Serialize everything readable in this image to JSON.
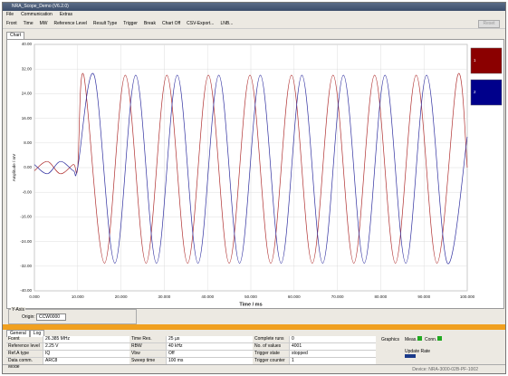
{
  "window": {
    "title": "NRA_Scope_Demo (V6.2.0)"
  },
  "menu": [
    "File",
    "Communication",
    "Extras"
  ],
  "toolbar": [
    "Front",
    "Time",
    "MW",
    "Reference Level",
    "Result Type",
    "Trigger",
    "Break",
    "Chart Off",
    "CSV-Export...",
    "LNB..."
  ],
  "side_button": "Reset",
  "tabs": [
    "Chart"
  ],
  "chart_data": {
    "type": "line",
    "xlabel": "Time / ms",
    "ylabel": "Amplitude / mV",
    "xlim": [
      0,
      100
    ],
    "ylim": [
      -40,
      40
    ],
    "xticks": [
      {
        "value": 0,
        "label": "0.000"
      },
      {
        "value": 10,
        "label": "10.000"
      },
      {
        "value": 20,
        "label": "20.000"
      },
      {
        "value": 30,
        "label": "30.000"
      },
      {
        "value": 40,
        "label": "40.000"
      },
      {
        "value": 50,
        "label": "50.000"
      },
      {
        "value": 60,
        "label": "60.000"
      },
      {
        "value": 70,
        "label": "70.000"
      },
      {
        "value": 80,
        "label": "80.000"
      },
      {
        "value": 90,
        "label": "90.000"
      },
      {
        "value": 100,
        "label": "100.000"
      }
    ],
    "yticks": [
      {
        "value": 40,
        "label": "40.00"
      },
      {
        "value": 32,
        "label": "32.00"
      },
      {
        "value": 24,
        "label": "24.00"
      },
      {
        "value": 16,
        "label": "16.00"
      },
      {
        "value": 8,
        "label": "8.00"
      },
      {
        "value": 0,
        "label": "0.00"
      },
      {
        "value": -8,
        "label": "-8.00"
      },
      {
        "value": -16,
        "label": "-16.00"
      },
      {
        "value": -24,
        "label": "-24.00"
      },
      {
        "value": -32,
        "label": "-32.00"
      },
      {
        "value": -40,
        "label": "-40.00"
      }
    ],
    "grid": true,
    "series": [
      {
        "name": "1",
        "color": "#b03030",
        "x": [
          0,
          3,
          6,
          9,
          10,
          11.4,
          16.2,
          21.0,
          25.8,
          30.6,
          35.4,
          40.2,
          45.0,
          49.8,
          54.6,
          59.4,
          64.2,
          69.0,
          73.8,
          78.6,
          83.4,
          88.2,
          93.0,
          97.8,
          100
        ],
        "values": [
          -1,
          2,
          -2,
          1,
          0,
          30,
          -31,
          30,
          -31,
          30,
          -31,
          30,
          -31,
          30,
          -31,
          30,
          -31,
          30,
          -31,
          30,
          -31,
          30,
          -31,
          30,
          0
        ]
      },
      {
        "name": "2",
        "color": "#3030a0",
        "x": [
          0,
          3,
          6,
          9,
          10,
          13.8,
          18.6,
          23.4,
          28.2,
          33.0,
          37.8,
          42.6,
          47.4,
          52.2,
          57.0,
          61.8,
          66.6,
          71.4,
          76.2,
          81.0,
          85.8,
          90.6,
          95.4,
          100
        ],
        "values": [
          1,
          -2,
          2,
          -1,
          0,
          30,
          -31,
          30,
          -31,
          30,
          -31,
          30,
          -31,
          30,
          -31,
          30,
          -31,
          30,
          -31,
          30,
          -31,
          30,
          -31,
          10
        ]
      }
    ],
    "legend_colors": [
      "#8b0000",
      "#00008b"
    ]
  },
  "y_axis_panel": {
    "title": "Y-Axis",
    "origin_label": "Origin:",
    "origin_value": "CCW0000"
  },
  "bottom_tabs": [
    "General",
    "Log"
  ],
  "params": [
    [
      [
        "Fcent",
        "26.385 MHz"
      ],
      [
        "Reference level",
        "2.25 V"
      ],
      [
        "Ref.A type",
        "IQ"
      ],
      [
        "Data comm. Mode",
        "ARC8"
      ]
    ],
    [
      [
        "Time Res.",
        "25 µs"
      ],
      [
        "RBW",
        "40 kHz"
      ],
      [
        "Vbw",
        "Off"
      ],
      [
        "Sweep time",
        "100 ms"
      ]
    ],
    [
      [
        "Complete runs",
        "0"
      ],
      [
        "No. of values",
        "4001"
      ],
      [
        "Trigger state",
        "stopped"
      ],
      [
        "Trigger counter",
        "1"
      ]
    ]
  ],
  "status": {
    "graphics": "Graphics",
    "meas": "Meas.",
    "conn": "Conn.",
    "update_rate": "Update Rate",
    "footer": "Device: NRA-3000-02B-PF-1002"
  }
}
